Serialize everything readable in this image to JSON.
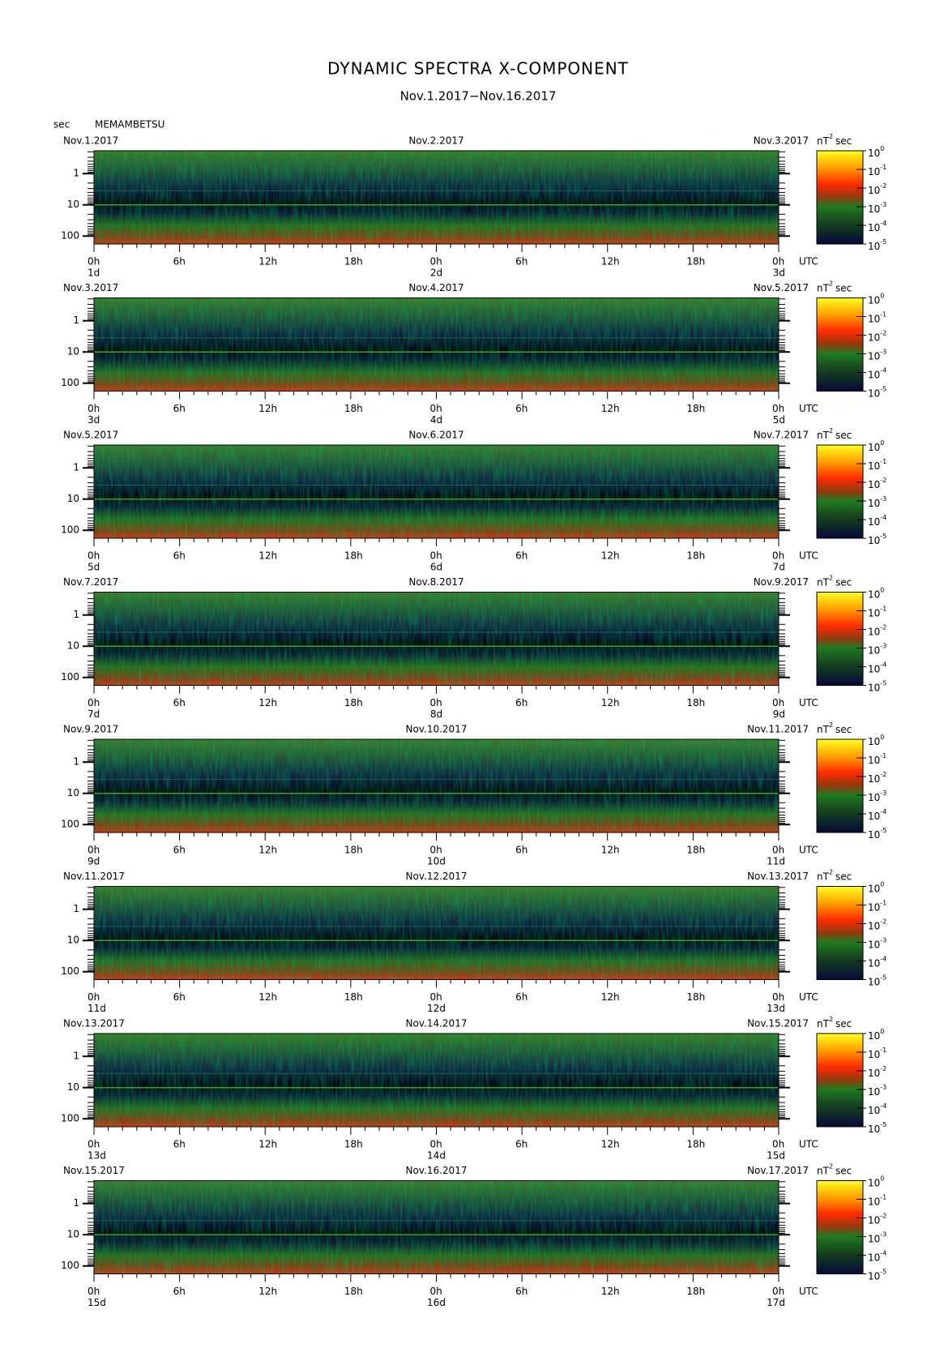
{
  "title": "DYNAMIC SPECTRA X-COMPONENT",
  "subtitle": "Nov.1.2017−Nov.16.2017",
  "period_label": "sec",
  "station": "MEMAMBETSU",
  "unit": {
    "base": "nT",
    "exponent": "2",
    "suffix": "sec"
  },
  "period_ticks": [
    "1",
    "10",
    "100"
  ],
  "hour_ticks": [
    "0h",
    "6h",
    "12h",
    "18h",
    "0h",
    "6h",
    "12h",
    "18h",
    "0h"
  ],
  "time_zone": "UTC",
  "colorbar_ticks": [
    {
      "base": "10",
      "exponent": "0"
    },
    {
      "base": "10",
      "exponent": "-1"
    },
    {
      "base": "10",
      "exponent": "-2"
    },
    {
      "base": "10",
      "exponent": "-3"
    },
    {
      "base": "10",
      "exponent": "-4"
    },
    {
      "base": "10",
      "exponent": "-5"
    }
  ],
  "panels": [
    {
      "dates": [
        "Nov.1.2017",
        "Nov.2.2017",
        "Nov.3.2017"
      ],
      "days": [
        "1d",
        "2d",
        "3d"
      ]
    },
    {
      "dates": [
        "Nov.3.2017",
        "Nov.4.2017",
        "Nov.5.2017"
      ],
      "days": [
        "3d",
        "4d",
        "5d"
      ]
    },
    {
      "dates": [
        "Nov.5.2017",
        "Nov.6.2017",
        "Nov.7.2017"
      ],
      "days": [
        "5d",
        "6d",
        "7d"
      ]
    },
    {
      "dates": [
        "Nov.7.2017",
        "Nov.8.2017",
        "Nov.9.2017"
      ],
      "days": [
        "7d",
        "8d",
        "9d"
      ]
    },
    {
      "dates": [
        "Nov.9.2017",
        "Nov.10.2017",
        "Nov.11.2017"
      ],
      "days": [
        "9d",
        "10d",
        "11d"
      ]
    },
    {
      "dates": [
        "Nov.11.2017",
        "Nov.12.2017",
        "Nov.13.2017"
      ],
      "days": [
        "11d",
        "12d",
        "13d"
      ]
    },
    {
      "dates": [
        "Nov.13.2017",
        "Nov.14.2017",
        "Nov.15.2017"
      ],
      "days": [
        "13d",
        "14d",
        "15d"
      ]
    },
    {
      "dates": [
        "Nov.15.2017",
        "Nov.16.2017",
        "Nov.17.2017"
      ],
      "days": [
        "15d",
        "16d",
        "17d"
      ]
    }
  ]
}
